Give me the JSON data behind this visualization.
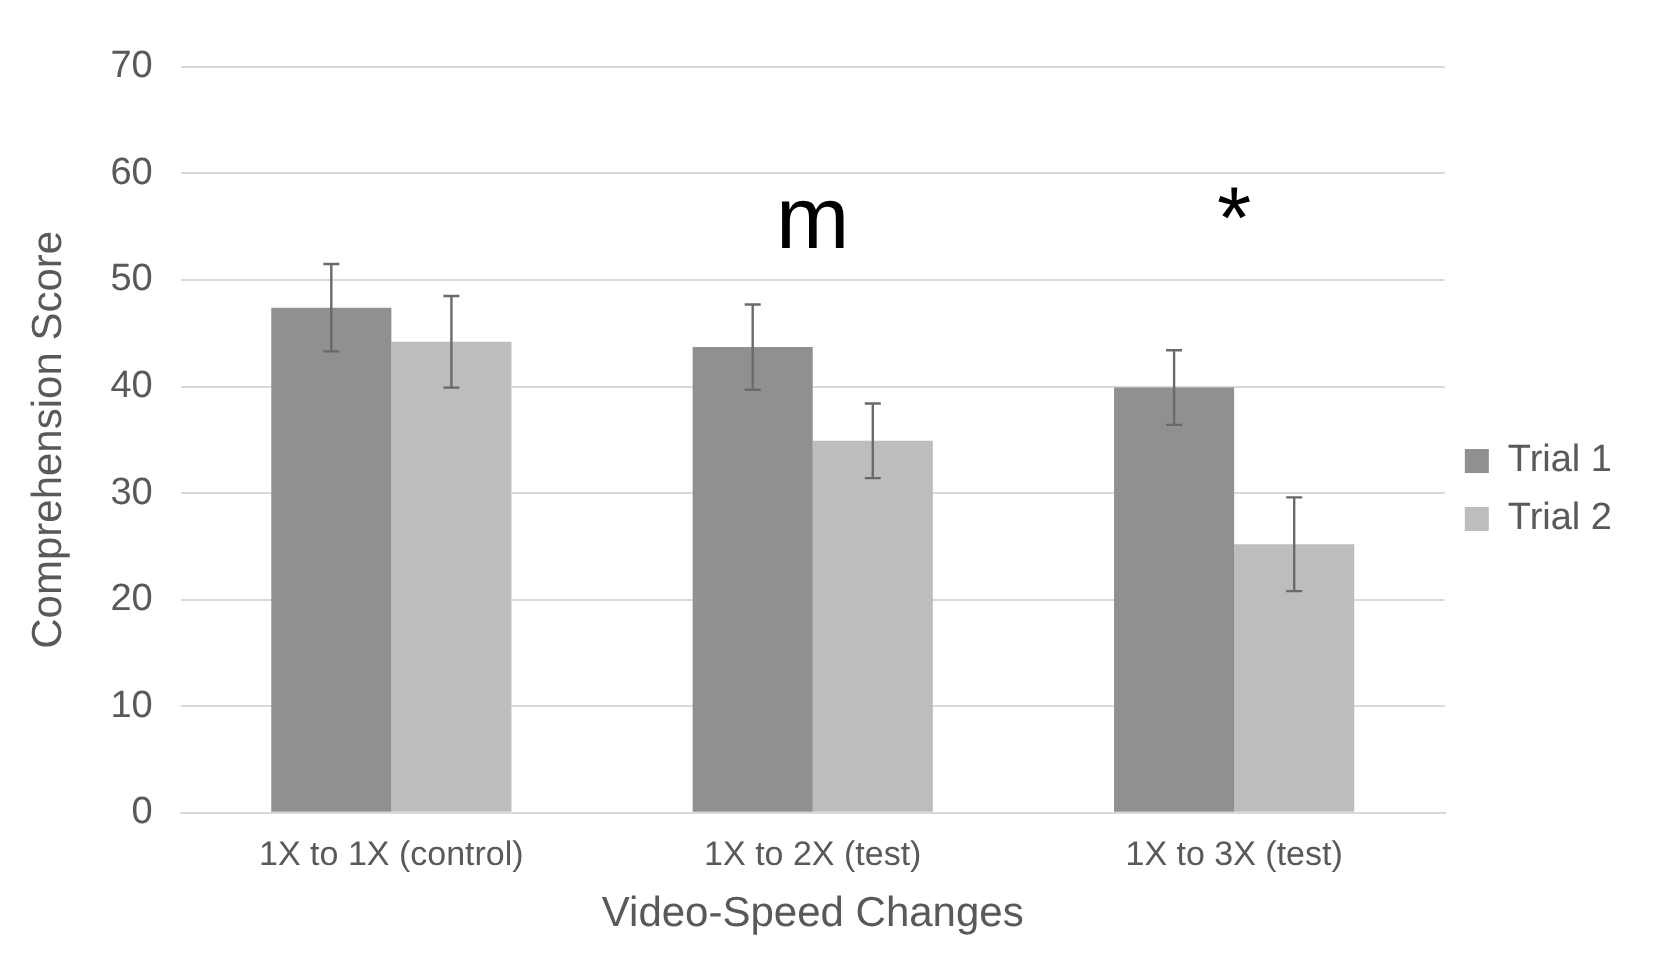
{
  "chart_data": {
    "type": "bar",
    "xlabel": "Video-Speed Changes",
    "ylabel": "Comprehension Score",
    "categories": [
      "1X to 1X (control)",
      "1X to 2X (test)",
      "1X to 3X (test)"
    ],
    "series": [
      {
        "name": "Trial 1",
        "color": "#909090",
        "values": [
          47.4,
          43.7,
          39.9
        ],
        "errors": [
          4.1,
          4,
          3.5
        ]
      },
      {
        "name": "Trial 2",
        "color": "#bdbdbd",
        "values": [
          44.2,
          34.9,
          25.2
        ],
        "errors": [
          4.3,
          3.5,
          4.4
        ]
      }
    ],
    "ylim": [
      0,
      70
    ],
    "yticks": [
      0,
      10,
      20,
      30,
      40,
      50,
      60,
      70
    ],
    "grid": "y",
    "legend": "right",
    "annotations": [
      "m",
      "*"
    ]
  }
}
